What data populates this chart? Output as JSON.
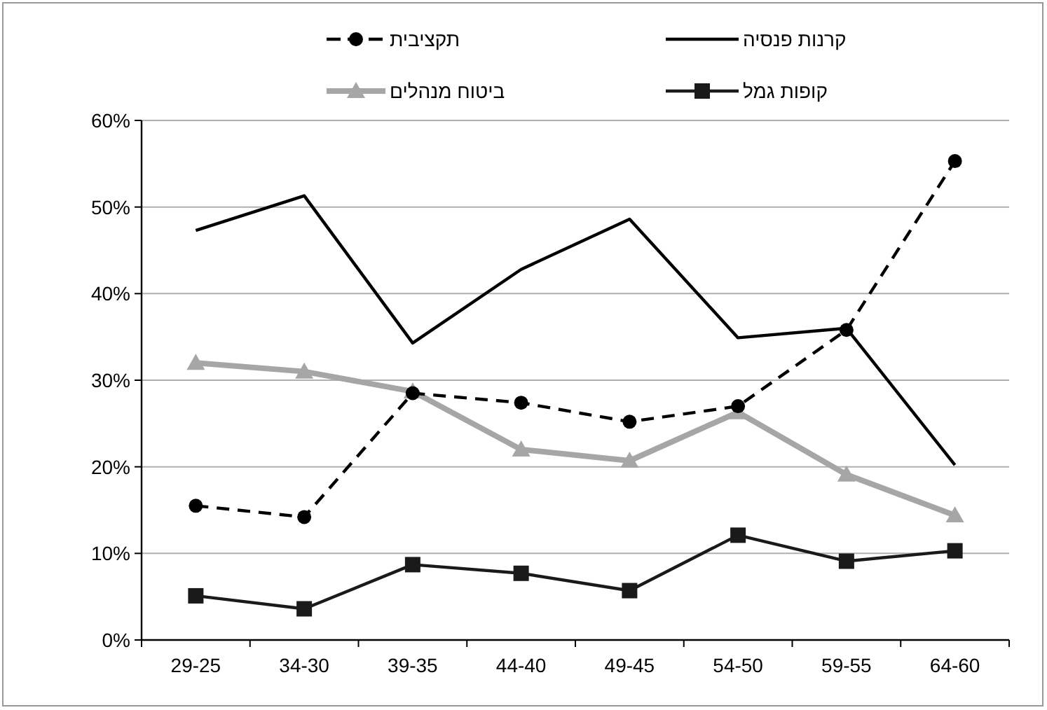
{
  "chart_data": {
    "type": "line",
    "categories": [
      "29-25",
      "34-30",
      "39-35",
      "44-40",
      "49-45",
      "54-50",
      "59-55",
      "64-60"
    ],
    "series": [
      {
        "name": "קרנות פנסיה",
        "color": "#000000",
        "marker": "none",
        "line_style": "solid",
        "values": [
          47.3,
          51.3,
          34.3,
          42.8,
          48.6,
          34.9,
          36.0,
          20.2
        ]
      },
      {
        "name": "תקציבית",
        "color": "#000000",
        "marker": "circle",
        "line_style": "dashed",
        "values": [
          15.5,
          14.2,
          28.5,
          27.4,
          25.2,
          27.0,
          35.8,
          55.3
        ]
      },
      {
        "name": "קופות גמל",
        "color": "#1a1a1a",
        "marker": "square",
        "line_style": "solid",
        "values": [
          5.1,
          3.6,
          8.7,
          7.7,
          5.7,
          12.1,
          9.1,
          10.3
        ]
      },
      {
        "name": "ביטוח מנהלים",
        "color": "#a6a6a6",
        "marker": "triangle",
        "line_style": "solid",
        "values": [
          32.0,
          31.0,
          28.7,
          22.0,
          20.7,
          26.3,
          19.1,
          14.4
        ]
      }
    ],
    "ylim": [
      0,
      60
    ],
    "yticks": [
      {
        "value": 0,
        "label": "0%"
      },
      {
        "value": 10,
        "label": "10%"
      },
      {
        "value": 20,
        "label": "20%"
      },
      {
        "value": 30,
        "label": "30%"
      },
      {
        "value": 40,
        "label": "40%"
      },
      {
        "value": 50,
        "label": "50%"
      },
      {
        "value": 60,
        "label": "60%"
      }
    ],
    "grid": "y",
    "legend": "top"
  }
}
